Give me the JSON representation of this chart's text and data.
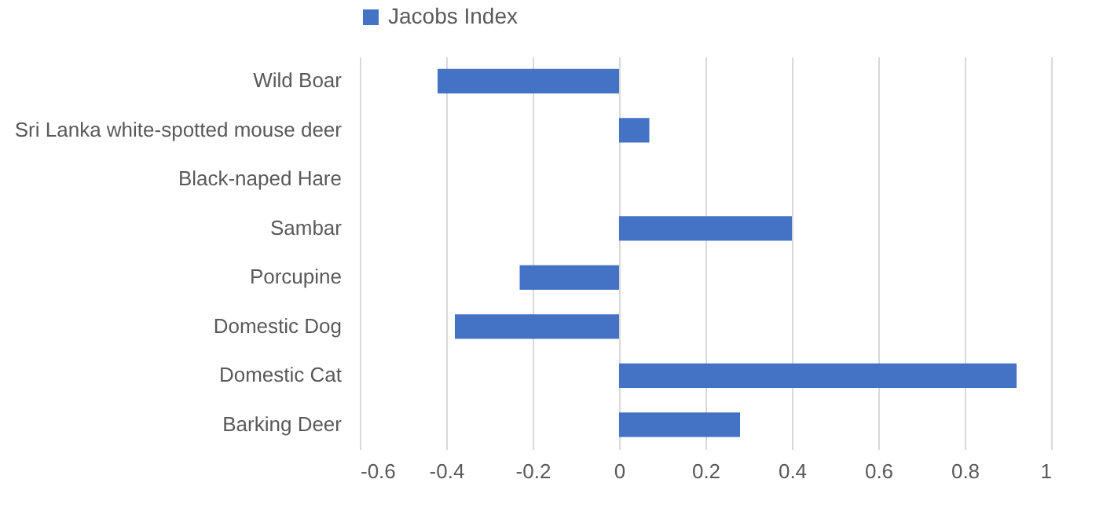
{
  "chart_data": {
    "type": "bar",
    "orientation": "horizontal",
    "categories": [
      "Wild Boar",
      "Sri Lanka white-spotted mouse deer",
      "Black-naped Hare",
      "Sambar",
      "Porcupine",
      "Domestic Dog",
      "Domestic Cat",
      "Barking Deer"
    ],
    "series": [
      {
        "name": "Jacobs Index",
        "color": "#4472c4",
        "values": [
          -0.42,
          0.07,
          0,
          0.4,
          -0.23,
          -0.38,
          0.92,
          0.28
        ]
      }
    ],
    "xlim": [
      -0.6,
      1
    ],
    "xticks": [
      -0.6,
      -0.4,
      -0.2,
      0,
      0.2,
      0.4,
      0.6,
      0.8,
      1
    ],
    "grid": "x",
    "legend": "top"
  }
}
